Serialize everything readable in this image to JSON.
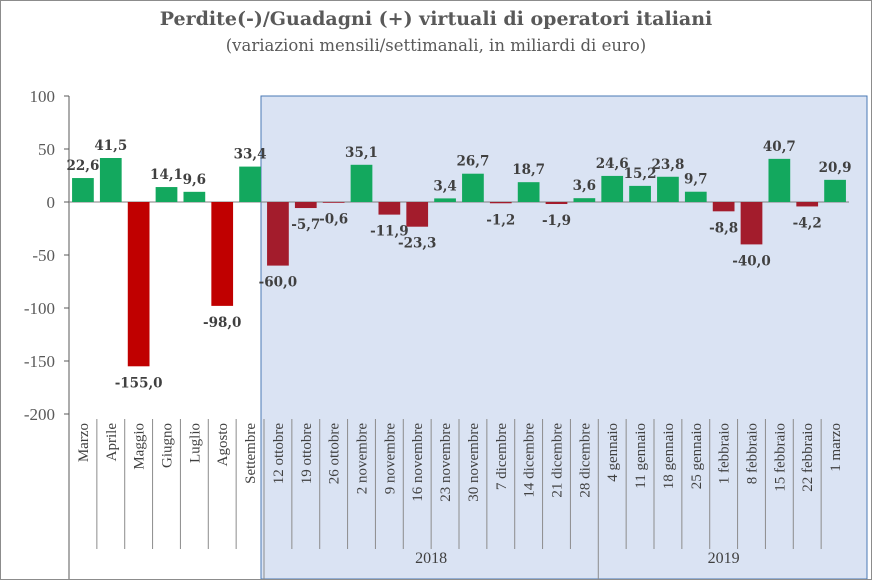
{
  "chart_data": {
    "type": "bar",
    "title": "Perdite(-)/Guadagni (+) virtuali di operatori italiani",
    "subtitle": "(variazioni mensili/settimanali, in miliardi di euro)",
    "ylim": [
      -200,
      100
    ],
    "yticks": [
      100,
      50,
      0,
      -50,
      -100,
      -150,
      -200
    ],
    "ytick_labels": [
      "100",
      "50",
      "0",
      "-50",
      "-100",
      "-150",
      "-200"
    ],
    "categories": [
      "Marzo",
      "Aprile",
      "Maggio",
      "Giugno",
      "Luglio",
      "Agosto",
      "Settembre",
      "12 ottobre",
      "19 ottobre",
      "26 ottobre",
      "2 novembre",
      "9 novembre",
      "16 novembre",
      "23 novembre",
      "30 novembre",
      "7 dicembre",
      "14 dicembre",
      "21 dicembre",
      "28 dicembre",
      "4 gennaio",
      "11 gennaio",
      "18 gennaio",
      "25 gennaio",
      "1 febbraio",
      "8 febbraio",
      "15 febbraio",
      "22 febbraio",
      "1 marzo"
    ],
    "values": [
      22.6,
      41.5,
      -155.0,
      14.1,
      9.6,
      -98.0,
      33.4,
      -60.0,
      -5.7,
      -0.6,
      35.1,
      -11.9,
      -23.3,
      3.4,
      26.7,
      -1.2,
      18.7,
      -1.9,
      3.6,
      24.6,
      15.2,
      23.8,
      9.7,
      -8.8,
      -40.0,
      40.7,
      -4.2,
      20.9
    ],
    "data_labels": [
      "22,6",
      "41,5",
      "-155,0",
      "14,1",
      "9,6",
      "-98,0",
      "33,4",
      "-60,0",
      "-5,7",
      "-0,6",
      "35,1",
      "-11,9",
      "-23,3",
      "3,4",
      "26,7",
      "-1,2",
      "18,7",
      "-1,9",
      "3,6",
      "24,6",
      "15,2",
      "23,8",
      "9,7",
      "-8,8",
      "-40,0",
      "40,7",
      "-4,2",
      "20,9"
    ],
    "groups": [
      {
        "label": "",
        "from": 0,
        "to": 6
      },
      {
        "label": "2018",
        "from": 7,
        "to": 18
      },
      {
        "label": "2019",
        "from": 19,
        "to": 27
      }
    ],
    "highlight_from_index": 7,
    "colors": {
      "positive": "#13a85e",
      "negative_early": "#c00000",
      "negative_late": "#a31c2c",
      "highlight_bg": "#dae3f3",
      "highlight_border": "#4a78b5",
      "text": "#595959"
    },
    "grid": false,
    "legend": "none"
  }
}
